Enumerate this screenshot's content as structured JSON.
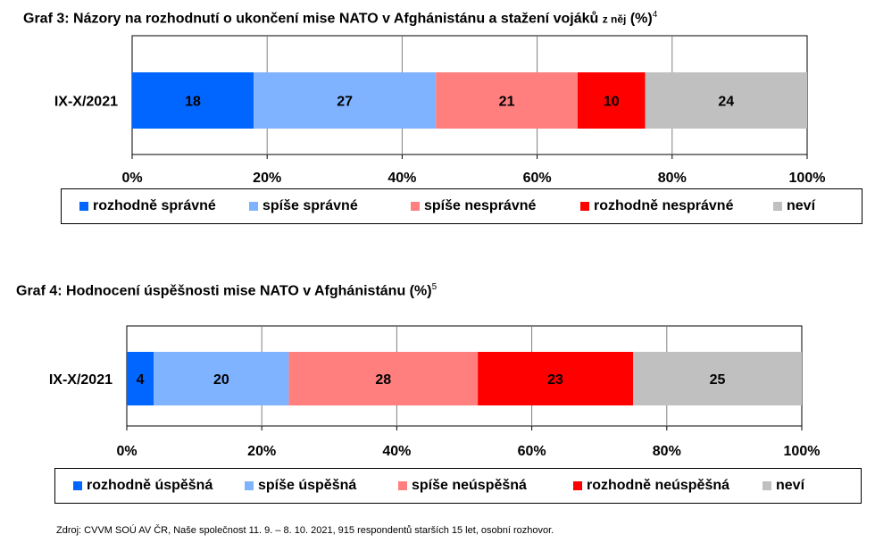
{
  "charts": [
    {
      "title_main": "Graf 3: Názory na rozhodnutí o ukončení mise NATO v Afghánistánu a stažení vojáků",
      "title_small": "z něj",
      "title_unit": "(%)",
      "title_note": "4"
    },
    {
      "title_main": "Graf 4: Hodnocení úspěšnosti mise NATO v Afghánistánu",
      "title_unit": "(%)",
      "title_note": "5"
    }
  ],
  "colors": [
    "#0066ff",
    "#80b3ff",
    "#ff7f7f",
    "#ff0000",
    "#c0c0c0"
  ],
  "chart_data": [
    {
      "type": "bar",
      "orientation": "horizontal-stacked-100",
      "categories": [
        "IX-X/2021"
      ],
      "series": [
        {
          "name": "rozhodně správné",
          "values": [
            18
          ]
        },
        {
          "name": "spíše správné",
          "values": [
            27
          ]
        },
        {
          "name": "spíše nesprávné",
          "values": [
            21
          ]
        },
        {
          "name": "rozhodně nesprávné",
          "values": [
            10
          ]
        },
        {
          "name": "neví",
          "values": [
            24
          ]
        }
      ],
      "x_ticks": [
        "0%",
        "20%",
        "40%",
        "60%",
        "80%",
        "100%"
      ],
      "xlim": [
        0,
        100
      ],
      "grid": true,
      "legend_position": "bottom"
    },
    {
      "type": "bar",
      "orientation": "horizontal-stacked-100",
      "categories": [
        "IX-X/2021"
      ],
      "series": [
        {
          "name": "rozhodně úspěšná",
          "values": [
            4
          ]
        },
        {
          "name": "spíše úspěšná",
          "values": [
            20
          ]
        },
        {
          "name": "spíše neúspěšná",
          "values": [
            28
          ]
        },
        {
          "name": "rozhodně neúspěšná",
          "values": [
            23
          ]
        },
        {
          "name": "neví",
          "values": [
            25
          ]
        }
      ],
      "x_ticks": [
        "0%",
        "20%",
        "40%",
        "60%",
        "80%",
        "100%"
      ],
      "xlim": [
        0,
        100
      ],
      "grid": true,
      "legend_position": "bottom"
    }
  ],
  "source": "Zdroj: CVVM SOÚ AV ČR, Naše společnost 11. 9. – 8. 10. 2021, 915 respondentů starších 15 let, osobní rozhovor."
}
